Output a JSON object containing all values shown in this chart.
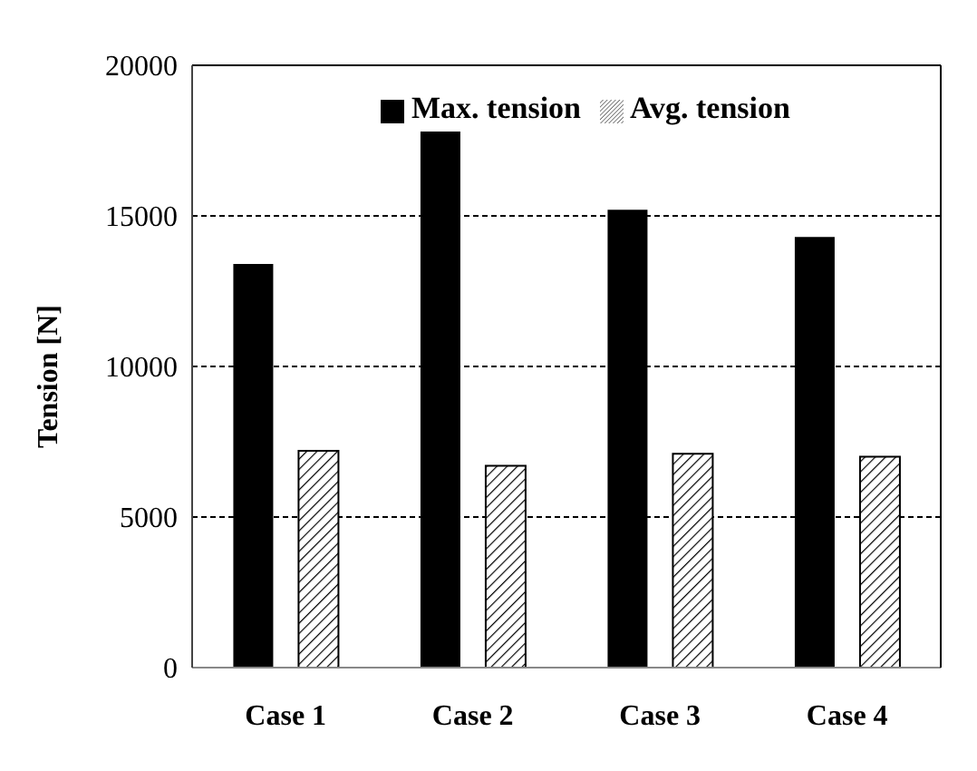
{
  "chart_data": {
    "type": "bar",
    "ylabel": "Tension [N]",
    "categories": [
      "Case 1",
      "Case 2",
      "Case 3",
      "Case 4"
    ],
    "series": [
      {
        "name": "Max. tension",
        "color": "#000000",
        "values": [
          13400,
          17800,
          15200,
          14300
        ]
      },
      {
        "name": "Avg. tension",
        "color": "#000000",
        "values": [
          7200,
          6700,
          7100,
          7000
        ]
      }
    ],
    "ylim": [
      0,
      20000
    ],
    "yticks": [
      0,
      5000,
      10000,
      15000,
      20000
    ],
    "grid": "y",
    "legend": "top"
  }
}
